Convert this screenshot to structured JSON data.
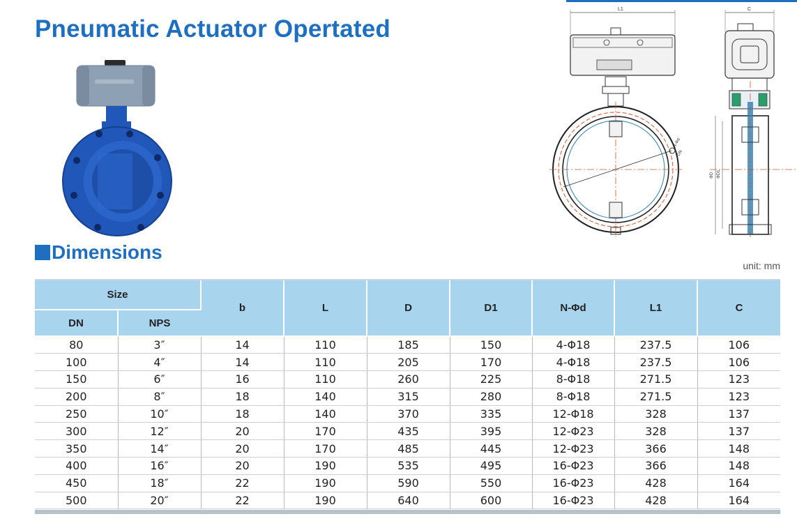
{
  "header": {
    "title": "Pneumatic Actuator Opertated"
  },
  "drawing": {
    "label_l1": "L1",
    "label_c": "C",
    "label_nd": "N-Φd",
    "label_dn": "DN",
    "label_d": "ΦD",
    "label_d1": "ΦD1"
  },
  "section": {
    "title": "Dimensions",
    "unit": "unit: mm"
  },
  "table": {
    "size_header": "Size",
    "columns": {
      "dn": "DN",
      "nps": "NPS",
      "b": "b",
      "l": "L",
      "d": "D",
      "d1": "D1",
      "nd": "N-Φd",
      "l1": "L1",
      "c": "C"
    },
    "rows": [
      [
        "80",
        "3″",
        "14",
        "110",
        "185",
        "150",
        "4-Φ18",
        "237.5",
        "106"
      ],
      [
        "100",
        "4″",
        "14",
        "110",
        "205",
        "170",
        "4-Φ18",
        "237.5",
        "106"
      ],
      [
        "150",
        "6″",
        "16",
        "110",
        "260",
        "225",
        "8-Φ18",
        "271.5",
        "123"
      ],
      [
        "200",
        "8″",
        "18",
        "140",
        "315",
        "280",
        "8-Φ18",
        "271.5",
        "123"
      ],
      [
        "250",
        "10″",
        "18",
        "140",
        "370",
        "335",
        "12-Φ18",
        "328",
        "137"
      ],
      [
        "300",
        "12″",
        "20",
        "170",
        "435",
        "395",
        "12-Φ23",
        "328",
        "137"
      ],
      [
        "350",
        "14″",
        "20",
        "170",
        "485",
        "445",
        "12-Φ23",
        "366",
        "148"
      ],
      [
        "400",
        "16″",
        "20",
        "190",
        "535",
        "495",
        "16-Φ23",
        "366",
        "148"
      ],
      [
        "450",
        "18″",
        "22",
        "190",
        "590",
        "550",
        "16-Φ23",
        "428",
        "164"
      ],
      [
        "500",
        "20″",
        "22",
        "190",
        "640",
        "600",
        "16-Φ23",
        "428",
        "164"
      ]
    ]
  },
  "colors": {
    "accent": "#1f6fc1",
    "header_fill": "#a9d4ee",
    "valve_blue": "#2157b8",
    "actuator_gray": "#8ea0b4"
  }
}
